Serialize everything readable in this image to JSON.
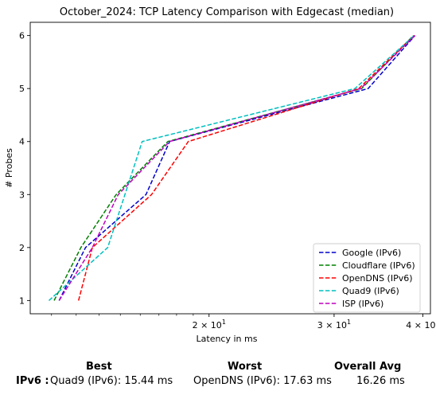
{
  "chart_data": {
    "type": "line",
    "title": "October_2024: TCP Latency Comparison with Edgecast (median)",
    "xlabel": "Latency in ms",
    "ylabel": "# Probes",
    "xscale": "log",
    "xlim": [
      11.2,
      41
    ],
    "ylim": [
      0.75,
      6.25
    ],
    "xticks": [
      {
        "value": 20,
        "label": "2 × 10^1"
      },
      {
        "value": 30,
        "label": "3 × 10^1"
      },
      {
        "value": 40,
        "label": "4 × 10^1"
      }
    ],
    "yticks": [
      1,
      2,
      3,
      4,
      5,
      6
    ],
    "grid": false,
    "legend_position": "lower-right",
    "series": [
      {
        "name": "Google (IPv6)",
        "color": "#0000cc",
        "x": [
          12.3,
          13.4,
          16.3,
          17.6,
          33.5,
          39.0
        ],
        "y": [
          1,
          2,
          3,
          4,
          5,
          6
        ]
      },
      {
        "name": "Cloudflare (IPv6)",
        "color": "#008000",
        "x": [
          12.1,
          13.2,
          14.8,
          17.5,
          32.8,
          38.8
        ],
        "y": [
          1,
          2,
          3,
          4,
          5,
          6
        ]
      },
      {
        "name": "OpenDNS (IPv6)",
        "color": "#ff0000",
        "x": [
          13.1,
          13.7,
          16.6,
          18.7,
          32.5,
          38.9
        ],
        "y": [
          1,
          2,
          3,
          4,
          5,
          6
        ]
      },
      {
        "name": "Quad9 (IPv6)",
        "color": "#00bfbf",
        "x": [
          11.9,
          14.4,
          16.1,
          32.1,
          38.9
        ],
        "y": [
          1,
          2,
          4,
          5,
          6
        ]
      },
      {
        "name": "ISP (IPv6)",
        "color": "#bf00bf",
        "x": [
          12.3,
          13.7,
          14.9,
          17.6,
          32.7,
          39.0
        ],
        "y": [
          1,
          2,
          3,
          4,
          5,
          6
        ]
      }
    ]
  },
  "summary": {
    "best_header": "Best",
    "worst_header": "Worst",
    "avg_header": "Overall Avg",
    "row_label": "IPv6 :",
    "best_value": "Quad9 (IPv6): 15.44 ms",
    "worst_value": "OpenDNS (IPv6): 17.63 ms",
    "avg_value": "16.26 ms"
  }
}
